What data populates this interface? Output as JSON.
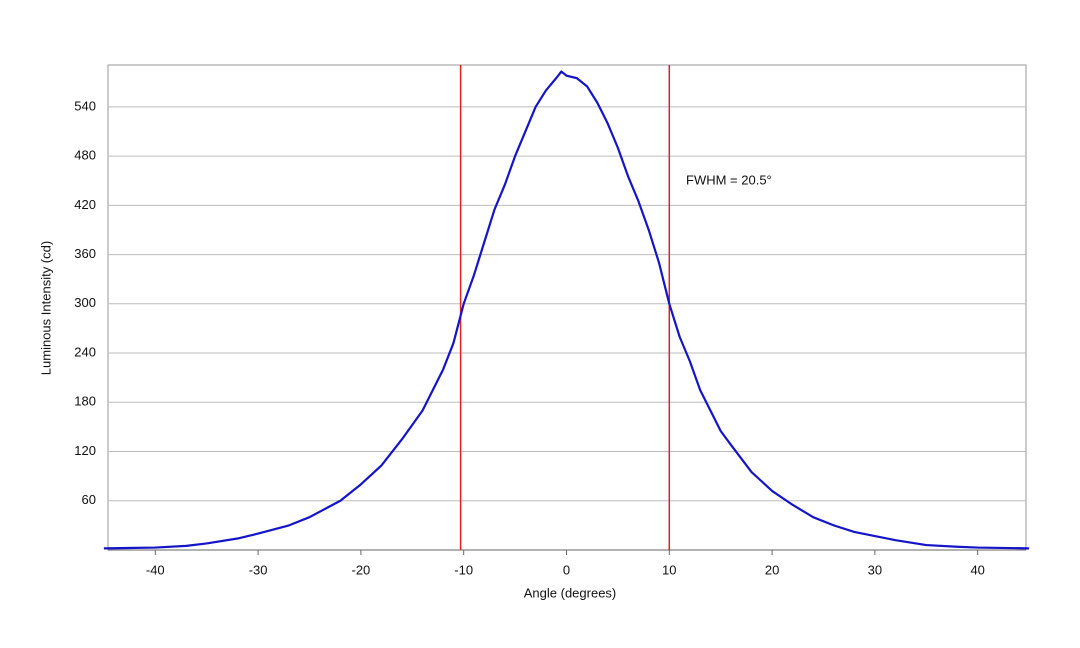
{
  "chart_data": {
    "type": "line",
    "xlabel": "Angle (degrees)",
    "ylabel": "Luminous Intensity (cd)",
    "annotation": "FWHM = 20.5°",
    "x": [
      -45,
      -40,
      -37,
      -35,
      -32,
      -30,
      -27,
      -25,
      -22,
      -20,
      -18,
      -16,
      -14,
      -12,
      -11,
      -10,
      -9,
      -8,
      -7,
      -6,
      -5,
      -4,
      -3,
      -2,
      -1,
      -0.5,
      0,
      1,
      2,
      3,
      4,
      5,
      6,
      7,
      8,
      9,
      10,
      11,
      12,
      13,
      14,
      15,
      16,
      18,
      20,
      22,
      24,
      26,
      28,
      30,
      32,
      35,
      38,
      40,
      45
    ],
    "values": [
      2,
      3,
      5,
      8,
      14,
      20,
      30,
      40,
      60,
      80,
      103,
      135,
      170,
      220,
      252,
      300,
      335,
      375,
      415,
      445,
      480,
      510,
      540,
      560,
      575,
      583,
      578,
      575,
      565,
      545,
      520,
      490,
      455,
      425,
      390,
      350,
      300,
      260,
      230,
      195,
      170,
      145,
      128,
      95,
      72,
      55,
      40,
      30,
      22,
      17,
      12,
      6,
      4,
      3,
      2
    ],
    "color": "#1515c8",
    "vlines": {
      "x": [
        -10.3,
        10.0
      ],
      "color": "#dd2222"
    },
    "xlim": [
      -44.6,
      44.7
    ],
    "ylim": [
      0,
      591
    ],
    "xticks": [
      -40,
      -30,
      -20,
      -10,
      0,
      10,
      20,
      30,
      40
    ],
    "yticks": [
      60,
      120,
      180,
      240,
      300,
      360,
      420,
      480,
      540
    ],
    "grid": true
  }
}
